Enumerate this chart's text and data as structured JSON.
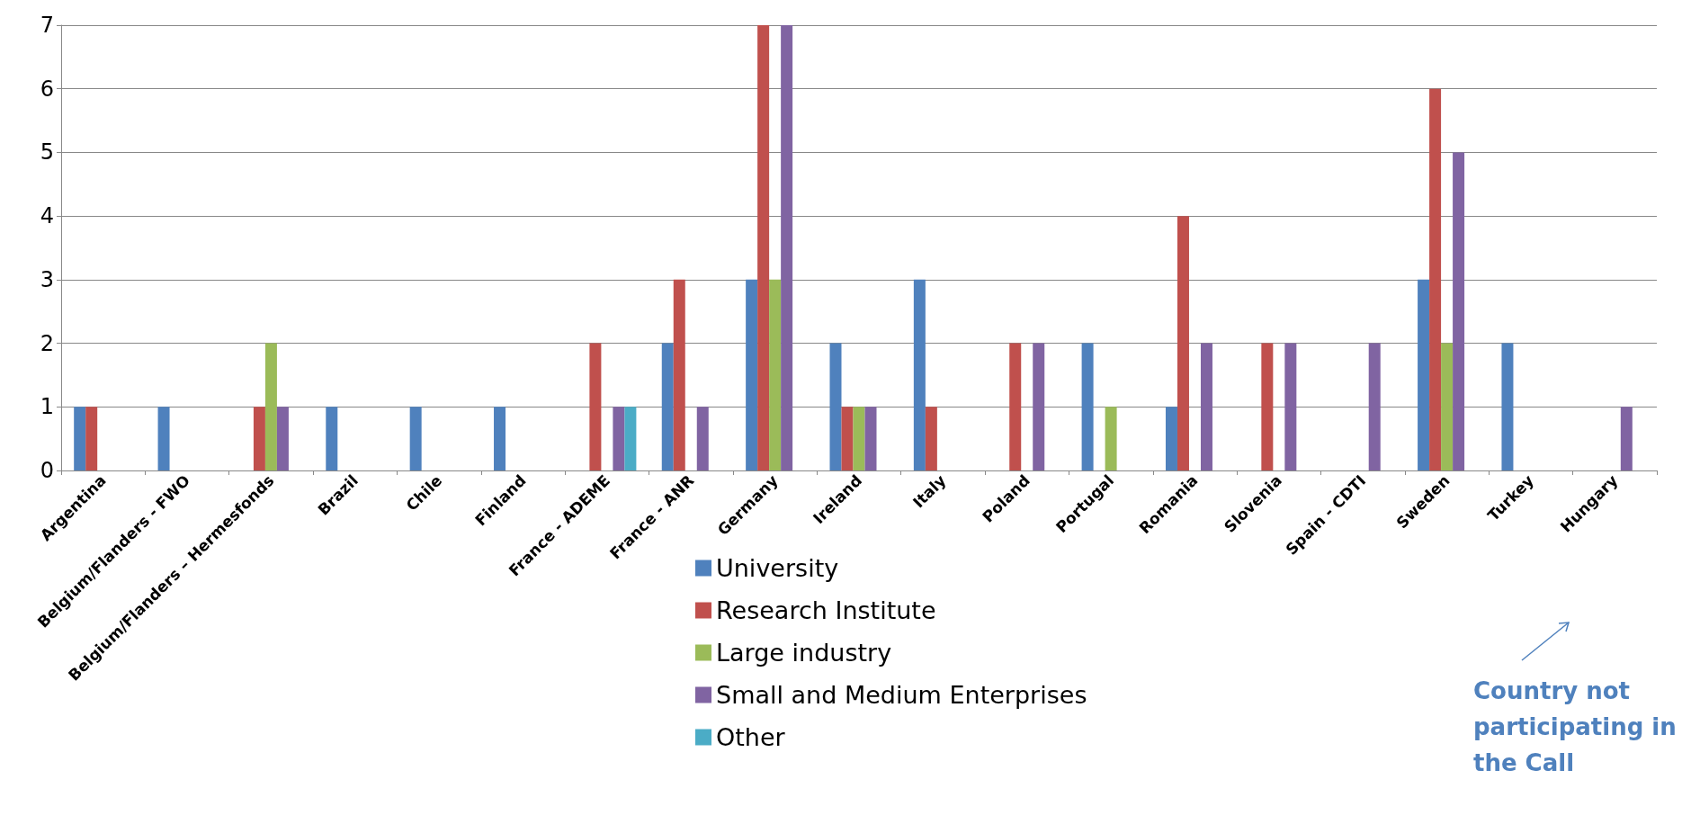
{
  "chart_data": {
    "type": "bar",
    "categories": [
      "Argentina",
      "Belgium/Flanders - FWO",
      "Belgium/Flanders – Hermesfonds",
      "Brazil",
      "Chile",
      "Finland",
      "France - ADEME",
      "France - ANR",
      "Germany",
      "Ireland",
      "Italy",
      "Poland",
      "Portugal",
      "Romania",
      "Slovenia",
      "Spain - CDTI",
      "Sweden",
      "Turkey",
      "Hungary"
    ],
    "series": [
      {
        "name": "University",
        "color": "#4f81bd",
        "values": [
          1,
          1,
          null,
          1,
          1,
          1,
          null,
          2,
          3,
          2,
          3,
          null,
          2,
          1,
          null,
          null,
          3,
          2,
          null
        ]
      },
      {
        "name": "Research Institute",
        "color": "#c0504d",
        "values": [
          1,
          null,
          1,
          null,
          null,
          null,
          2,
          3,
          7,
          1,
          1,
          2,
          null,
          4,
          2,
          null,
          6,
          null,
          null
        ]
      },
      {
        "name": "Large industry",
        "color": "#9bbb59",
        "values": [
          null,
          null,
          2,
          null,
          null,
          null,
          null,
          null,
          3,
          1,
          null,
          null,
          1,
          null,
          null,
          null,
          2,
          null,
          null
        ]
      },
      {
        "name": "Small and Medium Enterprises",
        "color": "#8064a2",
        "values": [
          null,
          null,
          1,
          null,
          null,
          null,
          1,
          1,
          7,
          1,
          null,
          2,
          null,
          2,
          2,
          2,
          5,
          null,
          1
        ]
      },
      {
        "name": "Other",
        "color": "#4bacc6",
        "values": [
          null,
          null,
          null,
          null,
          null,
          null,
          1,
          null,
          null,
          null,
          null,
          null,
          null,
          null,
          null,
          null,
          null,
          null,
          null
        ]
      }
    ],
    "ylim": [
      0,
      7
    ],
    "yticks": [
      0,
      1,
      2,
      3,
      4,
      5,
      6,
      7
    ],
    "grid": "y",
    "legend": "bottom",
    "annotations": [
      "Country not participating in the Call"
    ]
  }
}
